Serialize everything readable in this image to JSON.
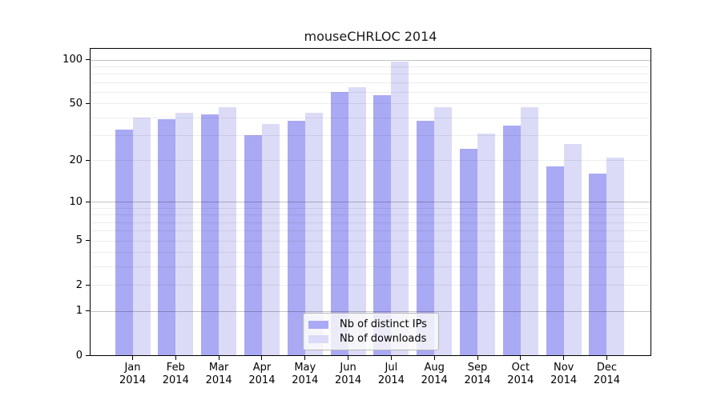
{
  "chart_data": {
    "type": "bar",
    "title": "mouseCHRLOC 2014",
    "categories": [
      {
        "month": "Jan",
        "year": "2014"
      },
      {
        "month": "Feb",
        "year": "2014"
      },
      {
        "month": "Mar",
        "year": "2014"
      },
      {
        "month": "Apr",
        "year": "2014"
      },
      {
        "month": "May",
        "year": "2014"
      },
      {
        "month": "Jun",
        "year": "2014"
      },
      {
        "month": "Jul",
        "year": "2014"
      },
      {
        "month": "Aug",
        "year": "2014"
      },
      {
        "month": "Sep",
        "year": "2014"
      },
      {
        "month": "Oct",
        "year": "2014"
      },
      {
        "month": "Nov",
        "year": "2014"
      },
      {
        "month": "Dec",
        "year": "2014"
      }
    ],
    "series": [
      {
        "name": "Nb of distinct IPs",
        "color": "#a9a9f4",
        "values": [
          33,
          39,
          42,
          30,
          38,
          60,
          57,
          38,
          24,
          35,
          18,
          16
        ]
      },
      {
        "name": "Nb of downloads",
        "color": "#dbdbf8",
        "values": [
          40,
          43,
          47,
          36,
          43,
          65,
          97,
          47,
          31,
          47,
          26,
          21
        ]
      }
    ],
    "yscale": "log1p",
    "ylim": [
      0,
      119
    ],
    "yticks": [
      100,
      50,
      20,
      10,
      5,
      2,
      1,
      0
    ],
    "major_gridlines": [
      1,
      10,
      100
    ],
    "minor_gridlines": [
      2,
      3,
      4,
      5,
      6,
      7,
      8,
      9,
      20,
      30,
      40,
      50,
      60,
      70,
      80,
      90
    ],
    "grid": "on",
    "legend_position": "bottom-center",
    "xlabel": "",
    "ylabel": ""
  }
}
